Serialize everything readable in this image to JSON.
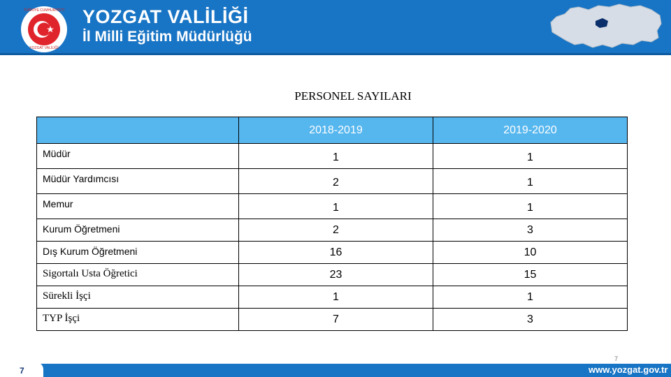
{
  "header": {
    "title_line1": "YOZGAT VALİLİĞİ",
    "title_line2": "İl Milli Eğitim Müdürlüğü",
    "seal_top_text": "TÜRKİYE CUMHURİYETİ",
    "seal_bottom_text": "YOZGAT VALİLİĞİ"
  },
  "slide": {
    "title": "PERSONEL SAYILARI"
  },
  "table": {
    "columns": [
      "",
      "2018-2019",
      "2019-2020"
    ],
    "rows": [
      {
        "label": "Müdür",
        "v1": "1",
        "v2": "1"
      },
      {
        "label": "Müdür Yardımcısı",
        "v1": "2",
        "v2": "1"
      },
      {
        "label": "Memur",
        "v1": "1",
        "v2": "1"
      },
      {
        "label": "Kurum Öğretmeni",
        "v1": "2",
        "v2": "3"
      },
      {
        "label": "Dış Kurum Öğretmeni",
        "v1": "16",
        "v2": "10"
      },
      {
        "label": "Sigortalı Usta Öğretici",
        "v1": "23",
        "v2": "15"
      },
      {
        "label": "Sürekli İşçi",
        "v1": "1",
        "v2": "1"
      },
      {
        "label": "TYP İşçi",
        "v1": "7",
        "v2": "3"
      }
    ]
  },
  "footer": {
    "page_left": "7",
    "page_right": "7",
    "website": "www.yozgat.gov.tr"
  },
  "colors": {
    "header_blue": "#1874c4",
    "table_header": "#56b6ee",
    "seal_red": "#e0242c"
  }
}
